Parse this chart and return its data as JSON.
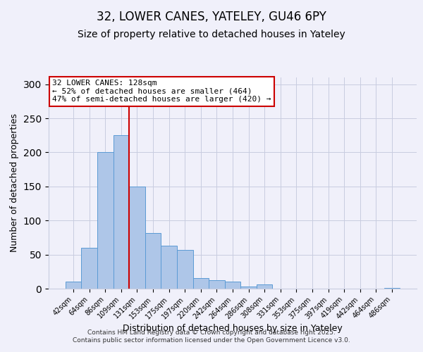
{
  "title": "32, LOWER CANES, YATELEY, GU46 6PY",
  "subtitle": "Size of property relative to detached houses in Yateley",
  "xlabel": "Distribution of detached houses by size in Yateley",
  "ylabel": "Number of detached properties",
  "bar_labels": [
    "42sqm",
    "64sqm",
    "86sqm",
    "109sqm",
    "131sqm",
    "153sqm",
    "175sqm",
    "197sqm",
    "220sqm",
    "242sqm",
    "264sqm",
    "286sqm",
    "308sqm",
    "331sqm",
    "353sqm",
    "375sqm",
    "397sqm",
    "419sqm",
    "442sqm",
    "464sqm",
    "486sqm"
  ],
  "bar_values": [
    10,
    60,
    200,
    225,
    150,
    82,
    63,
    57,
    15,
    12,
    10,
    3,
    6,
    0,
    0,
    0,
    0,
    0,
    0,
    0,
    1
  ],
  "bar_color": "#aec6e8",
  "bar_edge_color": "#5b9bd5",
  "vline_color": "#cc0000",
  "ylim": [
    0,
    310
  ],
  "yticks": [
    0,
    50,
    100,
    150,
    200,
    250,
    300
  ],
  "annotation_title": "32 LOWER CANES: 128sqm",
  "annotation_line1": "← 52% of detached houses are smaller (464)",
  "annotation_line2": "47% of semi-detached houses are larger (420) →",
  "footer1": "Contains HM Land Registry data © Crown copyright and database right 2025.",
  "footer2": "Contains public sector information licensed under the Open Government Licence v3.0.",
  "bg_color": "#f0f0fa",
  "grid_color": "#c8cce0",
  "title_fontsize": 12,
  "subtitle_fontsize": 10,
  "tick_fontsize": 7,
  "axis_label_fontsize": 9,
  "footer_fontsize": 6.5,
  "annot_fontsize": 8
}
